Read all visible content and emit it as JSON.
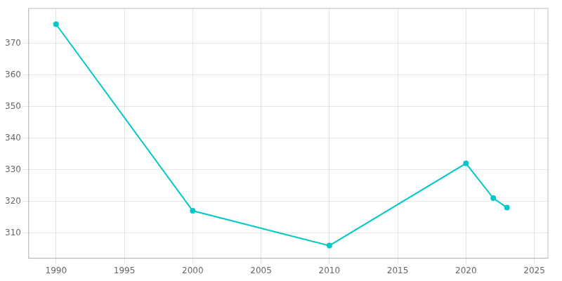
{
  "chart_data": {
    "type": "line",
    "x": [
      1990,
      2000,
      2010,
      2020,
      2022,
      2023
    ],
    "values": [
      376,
      317,
      306,
      332,
      321,
      318
    ],
    "color": "#00c8c8",
    "marker": "o",
    "xlim": [
      1988,
      2026
    ],
    "xticks": [
      1990,
      1995,
      2000,
      2005,
      2010,
      2015,
      2020,
      2025
    ],
    "ylim": [
      302,
      381
    ],
    "yticks": [
      310,
      320,
      330,
      340,
      350,
      360,
      370
    ],
    "grid": true
  }
}
